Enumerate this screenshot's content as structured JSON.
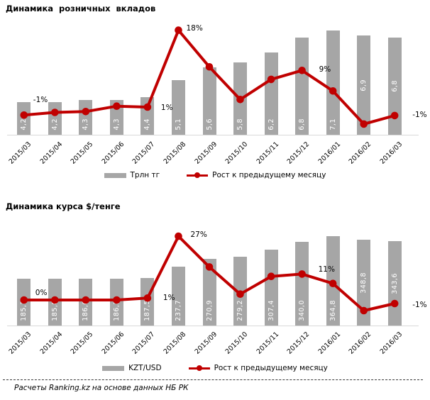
{
  "colors": {
    "bar": "#A6A6A6",
    "line": "#C00000",
    "axis": "#D9D9D9",
    "bar_label": "#FFFFFF",
    "text": "#000000"
  },
  "footer": {
    "text": "Расчеты Ranking.kz на основе данных НБ РК"
  },
  "chart_data": [
    {
      "type": "bar+line",
      "title": "Динамика  розничных  вкладов",
      "legend_position": "bottom",
      "categories": [
        "2015/03",
        "2015/04",
        "2015/05",
        "2015/06",
        "2015/07",
        "2015/08",
        "2015/09",
        "2015/10",
        "2015/11",
        "2015/12",
        "2016/01",
        "2016/02",
        "2016/03"
      ],
      "series": [
        {
          "name": "Трлн тг",
          "type": "bar",
          "values": [
            4.2,
            4.2,
            4.3,
            4.3,
            4.4,
            5.1,
            5.6,
            5.8,
            6.2,
            6.8,
            7.1,
            6.9,
            6.8
          ],
          "labels": [
            "4,2",
            "4,2",
            "4,3",
            "4,3",
            "4,4",
            "5,1",
            "5,6",
            "5,8",
            "6,2",
            "6,8",
            "7,1",
            "6,9",
            "6,8"
          ]
        },
        {
          "name": "Рост к предыдущему месяцу",
          "type": "line",
          "values": [
            -1,
            -0.4,
            -0.2,
            1,
            0.8,
            18,
            9.8,
            2.5,
            7,
            9,
            4.4,
            -3,
            -1.1
          ],
          "point_labels": [
            {
              "i": 0,
              "text": "-1%",
              "dx": 13,
              "dy": -27
            },
            {
              "i": 4,
              "text": "1%",
              "dx": 19,
              "dy": -5
            },
            {
              "i": 5,
              "text": "18%",
              "dx": 11,
              "dy": -9
            },
            {
              "i": 9,
              "text": "9%",
              "dx": 24,
              "dy": -7
            },
            {
              "i": 12,
              "text": "-1%",
              "dx": 25,
              "dy": -7
            }
          ]
        }
      ]
    },
    {
      "type": "bar+line",
      "title": "Динамика курса $/тенге",
      "legend_position": "bottom",
      "categories": [
        "2015/03",
        "2015/04",
        "2015/05",
        "2015/06",
        "2015/07",
        "2015/08",
        "2015/09",
        "2015/10",
        "2015/11",
        "2015/12",
        "2016/01",
        "2016/02",
        "2016/03"
      ],
      "series": [
        {
          "name": "KZT/USD",
          "type": "bar",
          "values": [
            185.7,
            185.8,
            186.0,
            186.2,
            187.5,
            237.7,
            270.9,
            279.2,
            307.4,
            340.0,
            364.8,
            348.8,
            343.6
          ],
          "labels": [
            "185,7",
            "185,8",
            "186,0",
            "186,2",
            "187,5",
            "237,7",
            "270,9",
            "279,2",
            "307,4",
            "340,0",
            "364,8",
            "348,8",
            "343,6"
          ]
        },
        {
          "name": "Рост к предыдущему месяцу",
          "type": "line",
          "values": [
            0,
            0,
            0,
            0,
            0.8,
            27,
            14,
            2.5,
            10,
            11,
            7,
            -4.5,
            -1.5
          ],
          "point_labels": [
            {
              "i": 0,
              "text": "0%",
              "dx": 16,
              "dy": -16
            },
            {
              "i": 4,
              "text": "1%",
              "dx": 22,
              "dy": -6
            },
            {
              "i": 5,
              "text": "27%",
              "dx": 17,
              "dy": -8
            },
            {
              "i": 9,
              "text": "11%",
              "dx": 23,
              "dy": -12
            },
            {
              "i": 12,
              "text": "-1%",
              "dx": 25,
              "dy": -4
            }
          ]
        }
      ]
    }
  ]
}
